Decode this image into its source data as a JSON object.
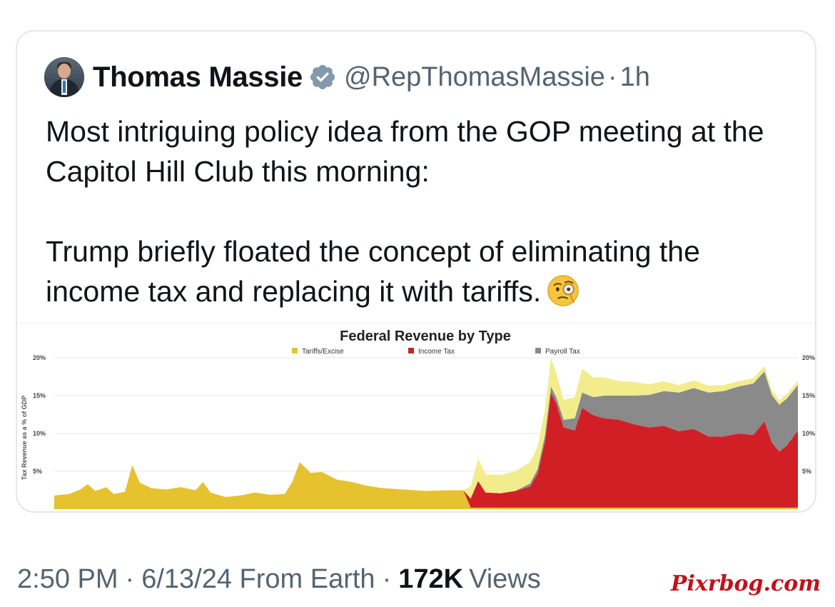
{
  "tweet": {
    "author_name": "Thomas Massie",
    "handle": "@RepThomasMassie",
    "separator": "·",
    "age": "1h",
    "text_p1": "Most intriguing policy idea from the GOP meeting at the Capitol Hill Club this morning:",
    "text_p2": "Trump briefly floated the concept of eliminating the income tax and replacing it with tariffs.",
    "emoji": "face-with-monocle-icon"
  },
  "footer": {
    "time": "2:50 PM",
    "dot1": "·",
    "date_source": "6/13/24 From Earth",
    "dot2": "·",
    "views_count": "172K",
    "views_label": "Views"
  },
  "watermark": "Pixrbog.com",
  "colors": {
    "verified": "#829aab",
    "tariffs": "#e6c22e",
    "income_tax": "#d21f26",
    "payroll_tax": "#8a8a8a",
    "excise_top": "#f2ec8c"
  },
  "chart_data": {
    "type": "area",
    "title": "Federal Revenue by Type",
    "ylabel": "Tax Revenue as a % of GDP",
    "yticks_left": [
      "20%",
      "15%",
      "10%",
      "5%"
    ],
    "yticks_right": [
      "20%",
      "15%",
      "10%",
      "5%"
    ],
    "ylim": [
      0,
      20
    ],
    "stacked": true,
    "legend_position": "top-center",
    "series": [
      {
        "name": "Tariffs/Excise",
        "color": "#e6c22e"
      },
      {
        "name": "Income Tax",
        "color": "#d21f26"
      },
      {
        "name": "Payroll Tax",
        "color": "#8a8a8a"
      }
    ],
    "points": [
      {
        "t": 0.0,
        "tariffs": 1.8,
        "income": 0.0,
        "payroll": 0.0,
        "excise": 0.0
      },
      {
        "t": 0.02,
        "tariffs": 2.0,
        "income": 0.0,
        "payroll": 0.0,
        "excise": 0.0
      },
      {
        "t": 0.035,
        "tariffs": 2.6,
        "income": 0.0,
        "payroll": 0.0,
        "excise": 0.0
      },
      {
        "t": 0.045,
        "tariffs": 3.3,
        "income": 0.0,
        "payroll": 0.0,
        "excise": 0.0
      },
      {
        "t": 0.055,
        "tariffs": 2.4,
        "income": 0.0,
        "payroll": 0.0,
        "excise": 0.0
      },
      {
        "t": 0.07,
        "tariffs": 2.9,
        "income": 0.0,
        "payroll": 0.0,
        "excise": 0.0
      },
      {
        "t": 0.08,
        "tariffs": 2.0,
        "income": 0.0,
        "payroll": 0.0,
        "excise": 0.0
      },
      {
        "t": 0.095,
        "tariffs": 2.3,
        "income": 0.0,
        "payroll": 0.0,
        "excise": 0.0
      },
      {
        "t": 0.105,
        "tariffs": 5.8,
        "income": 0.0,
        "payroll": 0.0,
        "excise": 0.0
      },
      {
        "t": 0.115,
        "tariffs": 3.5,
        "income": 0.0,
        "payroll": 0.0,
        "excise": 0.0
      },
      {
        "t": 0.13,
        "tariffs": 2.8,
        "income": 0.0,
        "payroll": 0.0,
        "excise": 0.0
      },
      {
        "t": 0.15,
        "tariffs": 2.6,
        "income": 0.0,
        "payroll": 0.0,
        "excise": 0.0
      },
      {
        "t": 0.17,
        "tariffs": 2.9,
        "income": 0.0,
        "payroll": 0.0,
        "excise": 0.0
      },
      {
        "t": 0.19,
        "tariffs": 2.5,
        "income": 0.0,
        "payroll": 0.0,
        "excise": 0.0
      },
      {
        "t": 0.2,
        "tariffs": 3.6,
        "income": 0.0,
        "payroll": 0.0,
        "excise": 0.0
      },
      {
        "t": 0.21,
        "tariffs": 2.2,
        "income": 0.0,
        "payroll": 0.0,
        "excise": 0.0
      },
      {
        "t": 0.23,
        "tariffs": 1.6,
        "income": 0.0,
        "payroll": 0.0,
        "excise": 0.0
      },
      {
        "t": 0.25,
        "tariffs": 1.8,
        "income": 0.0,
        "payroll": 0.0,
        "excise": 0.0
      },
      {
        "t": 0.27,
        "tariffs": 2.2,
        "income": 0.0,
        "payroll": 0.0,
        "excise": 0.0
      },
      {
        "t": 0.29,
        "tariffs": 1.9,
        "income": 0.0,
        "payroll": 0.0,
        "excise": 0.0
      },
      {
        "t": 0.31,
        "tariffs": 2.0,
        "income": 0.0,
        "payroll": 0.0,
        "excise": 0.0
      },
      {
        "t": 0.32,
        "tariffs": 3.6,
        "income": 0.0,
        "payroll": 0.0,
        "excise": 0.0
      },
      {
        "t": 0.33,
        "tariffs": 6.2,
        "income": 0.0,
        "payroll": 0.0,
        "excise": 0.0
      },
      {
        "t": 0.345,
        "tariffs": 4.8,
        "income": 0.0,
        "payroll": 0.0,
        "excise": 0.0
      },
      {
        "t": 0.36,
        "tariffs": 4.9,
        "income": 0.0,
        "payroll": 0.0,
        "excise": 0.0
      },
      {
        "t": 0.38,
        "tariffs": 3.9,
        "income": 0.0,
        "payroll": 0.0,
        "excise": 0.0
      },
      {
        "t": 0.4,
        "tariffs": 3.6,
        "income": 0.0,
        "payroll": 0.0,
        "excise": 0.0
      },
      {
        "t": 0.42,
        "tariffs": 3.1,
        "income": 0.0,
        "payroll": 0.0,
        "excise": 0.0
      },
      {
        "t": 0.44,
        "tariffs": 2.8,
        "income": 0.0,
        "payroll": 0.0,
        "excise": 0.0
      },
      {
        "t": 0.47,
        "tariffs": 2.6,
        "income": 0.0,
        "payroll": 0.0,
        "excise": 0.0
      },
      {
        "t": 0.5,
        "tariffs": 2.4,
        "income": 0.0,
        "payroll": 0.0,
        "excise": 0.0
      },
      {
        "t": 0.53,
        "tariffs": 2.5,
        "income": 0.0,
        "payroll": 0.0,
        "excise": 0.0
      },
      {
        "t": 0.55,
        "tariffs": 2.5,
        "income": 0.0,
        "payroll": 0.0,
        "excise": 0.0
      },
      {
        "t": 0.56,
        "tariffs": 0.2,
        "income": 1.2,
        "payroll": 0.0,
        "excise": 1.6
      },
      {
        "t": 0.57,
        "tariffs": 0.2,
        "income": 3.5,
        "payroll": 0.0,
        "excise": 3.0
      },
      {
        "t": 0.58,
        "tariffs": 0.2,
        "income": 2.0,
        "payroll": 0.0,
        "excise": 2.4
      },
      {
        "t": 0.6,
        "tariffs": 0.2,
        "income": 1.9,
        "payroll": 0.0,
        "excise": 2.4
      },
      {
        "t": 0.62,
        "tariffs": 0.2,
        "income": 2.2,
        "payroll": 0.0,
        "excise": 2.6
      },
      {
        "t": 0.64,
        "tariffs": 0.2,
        "income": 2.8,
        "payroll": 0.4,
        "excise": 2.8
      },
      {
        "t": 0.65,
        "tariffs": 0.2,
        "income": 4.5,
        "payroll": 0.6,
        "excise": 3.0
      },
      {
        "t": 0.66,
        "tariffs": 0.2,
        "income": 8.8,
        "payroll": 0.8,
        "excise": 3.4
      },
      {
        "t": 0.668,
        "tariffs": 0.2,
        "income": 15.2,
        "payroll": 0.8,
        "excise": 3.8
      },
      {
        "t": 0.675,
        "tariffs": 0.2,
        "income": 13.8,
        "payroll": 0.8,
        "excise": 3.2
      },
      {
        "t": 0.685,
        "tariffs": 0.2,
        "income": 10.6,
        "payroll": 1.0,
        "excise": 2.6
      },
      {
        "t": 0.7,
        "tariffs": 0.2,
        "income": 10.2,
        "payroll": 1.6,
        "excise": 2.8
      },
      {
        "t": 0.71,
        "tariffs": 0.2,
        "income": 13.2,
        "payroll": 2.0,
        "excise": 3.2
      },
      {
        "t": 0.725,
        "tariffs": 0.2,
        "income": 12.2,
        "payroll": 2.4,
        "excise": 2.6
      },
      {
        "t": 0.74,
        "tariffs": 0.2,
        "income": 11.8,
        "payroll": 3.0,
        "excise": 2.4
      },
      {
        "t": 0.76,
        "tariffs": 0.2,
        "income": 11.6,
        "payroll": 3.2,
        "excise": 1.9
      },
      {
        "t": 0.78,
        "tariffs": 0.2,
        "income": 11.0,
        "payroll": 3.8,
        "excise": 1.8
      },
      {
        "t": 0.8,
        "tariffs": 0.2,
        "income": 10.6,
        "payroll": 4.3,
        "excise": 1.4
      },
      {
        "t": 0.82,
        "tariffs": 0.2,
        "income": 10.8,
        "payroll": 4.6,
        "excise": 1.3
      },
      {
        "t": 0.84,
        "tariffs": 0.2,
        "income": 10.1,
        "payroll": 5.1,
        "excise": 1.0
      },
      {
        "t": 0.86,
        "tariffs": 0.2,
        "income": 10.4,
        "payroll": 5.4,
        "excise": 1.0
      },
      {
        "t": 0.88,
        "tariffs": 0.2,
        "income": 9.4,
        "payroll": 5.8,
        "excise": 0.9
      },
      {
        "t": 0.9,
        "tariffs": 0.2,
        "income": 9.4,
        "payroll": 6.0,
        "excise": 0.8
      },
      {
        "t": 0.92,
        "tariffs": 0.2,
        "income": 9.8,
        "payroll": 6.2,
        "excise": 0.7
      },
      {
        "t": 0.94,
        "tariffs": 0.2,
        "income": 9.6,
        "payroll": 6.8,
        "excise": 0.7
      },
      {
        "t": 0.955,
        "tariffs": 0.2,
        "income": 11.4,
        "payroll": 6.6,
        "excise": 0.7
      },
      {
        "t": 0.965,
        "tariffs": 0.2,
        "income": 8.6,
        "payroll": 6.3,
        "excise": 0.6
      },
      {
        "t": 0.975,
        "tariffs": 0.2,
        "income": 7.4,
        "payroll": 6.2,
        "excise": 0.6
      },
      {
        "t": 0.985,
        "tariffs": 0.2,
        "income": 8.2,
        "payroll": 6.2,
        "excise": 0.6
      },
      {
        "t": 1.0,
        "tariffs": 0.2,
        "income": 10.2,
        "payroll": 6.0,
        "excise": 0.6
      }
    ]
  }
}
